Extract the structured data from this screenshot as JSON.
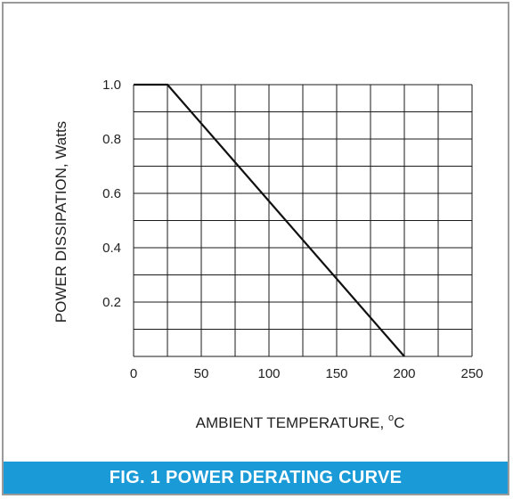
{
  "figure": {
    "caption": "FIG. 1 POWER DERATING CURVE",
    "caption_bg": "#1a9ad6",
    "frame_color": "#9a9a9a"
  },
  "chart_data": {
    "type": "line",
    "title": "",
    "xlabel_main": "AMBIENT TEMPERATURE, ",
    "xlabel_degree": "o",
    "xlabel_unit": "C",
    "ylabel": "POWER DISSIPATION, Watts",
    "xlim": [
      0,
      250
    ],
    "ylim": [
      0,
      1.0
    ],
    "x_ticks": [
      "0",
      "50",
      "100",
      "150",
      "200",
      "250"
    ],
    "x_tick_values": [
      0,
      50,
      100,
      150,
      200,
      250
    ],
    "y_ticks": [
      "0.2",
      "0.4",
      "0.6",
      "0.8",
      "1.0"
    ],
    "y_tick_values": [
      0.2,
      0.4,
      0.6,
      0.8,
      1.0
    ],
    "x_grid_step": 25,
    "y_grid_step": 0.1,
    "grid": true,
    "series": [
      {
        "x": [
          0,
          25,
          200
        ],
        "y": [
          1.0,
          1.0,
          0.0
        ],
        "color": "#111111"
      }
    ]
  }
}
